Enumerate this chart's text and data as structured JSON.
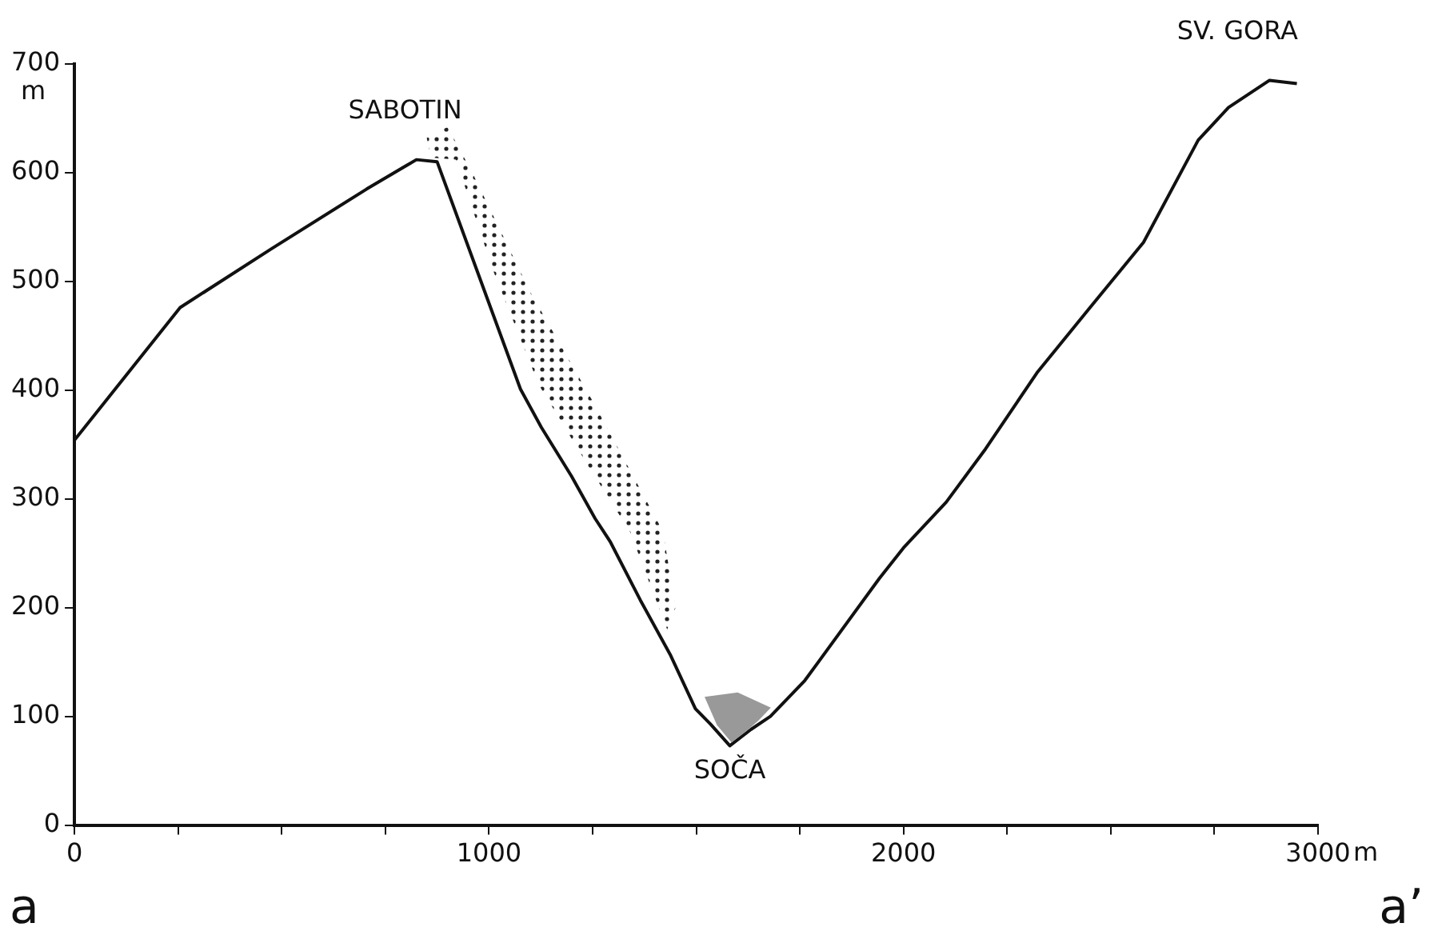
{
  "chart_data": {
    "type": "line",
    "xlabel": "m",
    "ylabel": "m",
    "x": [
      0,
      255,
      475,
      705,
      825,
      875,
      975,
      1076,
      1126,
      1199,
      1256,
      1292,
      1365,
      1437,
      1498,
      1534,
      1581,
      1632,
      1679,
      1762,
      1942,
      2000,
      2103,
      2198,
      2322,
      2450,
      2579,
      2711,
      2784,
      2883,
      2949
    ],
    "series": [
      {
        "color": "#111111",
        "values": [
          354,
          476,
          530,
          585,
          612,
          610,
          506,
          401,
          366,
          321,
          282,
          261,
          207,
          157,
          107,
          93,
          73,
          88,
          100,
          133,
          227,
          255,
          297,
          346,
          416,
          476,
          536,
          630,
          660,
          685,
          682
        ]
      }
    ],
    "xlim": [
      0,
      3000
    ],
    "ylim": [
      0,
      700
    ],
    "xticks": [
      0,
      {
        "value": 250,
        "label": null
      },
      {
        "value": 500,
        "label": null
      },
      {
        "value": 750,
        "label": null
      },
      1000,
      {
        "value": 1250,
        "label": null
      },
      {
        "value": 1500,
        "label": null
      },
      {
        "value": 1750,
        "label": null
      },
      2000,
      {
        "value": 2250,
        "label": null
      },
      {
        "value": 2500,
        "label": null
      },
      {
        "value": 2750,
        "label": null
      },
      3000
    ],
    "yticks": [
      0,
      100,
      200,
      300,
      400,
      500,
      600,
      700
    ],
    "grid": false,
    "legend": false,
    "marker": "none",
    "line_style": "solid",
    "annotations": [
      {
        "text": "SABOTIN",
        "x": 875,
        "y": 612
      },
      {
        "text": "SOČA",
        "x": 1581,
        "y": 73
      },
      {
        "text": "SV. GORA",
        "x": 2883,
        "y": 685
      },
      "a",
      "a’"
    ]
  }
}
